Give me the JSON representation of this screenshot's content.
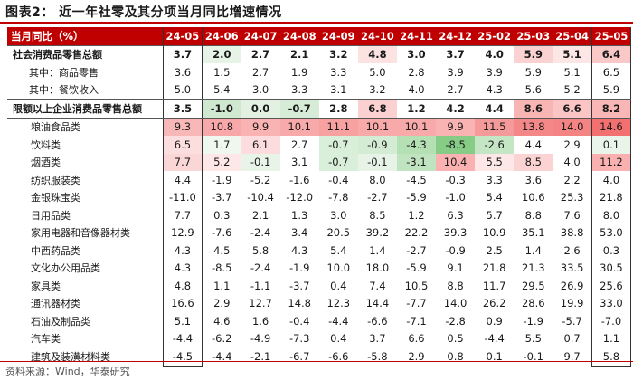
{
  "title": "图表2：  近一年社零及其分项当月同比增速情况",
  "source": "资料来源：Wind，华泰研究",
  "chart_data": {
    "type": "table",
    "header_label": "当月同比（%）",
    "columns": [
      "24-05",
      "24-06",
      "24-07",
      "24-08",
      "24-09",
      "24-10",
      "24-11",
      "24-12",
      "25-02",
      "25-03",
      "25-04",
      "25-05"
    ],
    "rows": [
      {
        "label": "社会消费品零售总额",
        "style": "bold",
        "values": [
          3.7,
          2.0,
          2.7,
          2.1,
          3.2,
          4.8,
          3.0,
          3.7,
          4.0,
          5.9,
          5.1,
          6.4
        ]
      },
      {
        "label": "其中：商品零售",
        "style": "sub",
        "values": [
          3.6,
          1.5,
          2.7,
          1.9,
          3.3,
          5.0,
          2.8,
          3.9,
          3.9,
          5.9,
          5.1,
          6.5
        ]
      },
      {
        "label": "其中：餐饮收入",
        "style": "sub",
        "values": [
          5.0,
          5.4,
          3.0,
          3.3,
          3.1,
          3.2,
          4.0,
          2.7,
          4.3,
          5.6,
          5.2,
          5.9
        ]
      },
      {
        "label": "限额以上企业消费品零售总额",
        "style": "bold",
        "values": [
          3.5,
          -1.0,
          0.0,
          -0.7,
          2.8,
          6.8,
          1.2,
          4.2,
          4.4,
          8.6,
          6.6,
          8.2
        ]
      },
      {
        "label": "粮油食品类",
        "style": "ind",
        "values": [
          9.3,
          10.8,
          9.9,
          10.1,
          11.1,
          10.1,
          10.1,
          9.9,
          11.5,
          13.8,
          14.0,
          14.6
        ]
      },
      {
        "label": "饮料类",
        "style": "ind",
        "values": [
          6.5,
          1.7,
          6.1,
          2.7,
          -0.7,
          -0.9,
          -4.3,
          -8.5,
          -2.6,
          4.4,
          2.9,
          0.1
        ]
      },
      {
        "label": "烟酒类",
        "style": "ind",
        "values": [
          7.7,
          5.2,
          -0.1,
          3.1,
          -0.7,
          -0.1,
          -3.1,
          10.4,
          5.5,
          8.5,
          4.0,
          11.2
        ]
      },
      {
        "label": "纺织服装类",
        "style": "ind",
        "values": [
          4.4,
          -1.9,
          -5.2,
          -1.6,
          -0.4,
          8.0,
          -4.5,
          -0.3,
          3.3,
          3.6,
          2.2,
          4.0
        ]
      },
      {
        "label": "金银珠宝类",
        "style": "ind",
        "values": [
          -11.0,
          -3.7,
          -10.4,
          -12.0,
          -7.8,
          -2.7,
          -5.9,
          -1.0,
          5.4,
          10.6,
          25.3,
          21.8
        ]
      },
      {
        "label": "日用品类",
        "style": "ind",
        "values": [
          7.7,
          0.3,
          2.1,
          1.3,
          3.0,
          8.5,
          1.2,
          6.3,
          5.7,
          8.8,
          7.6,
          8.0
        ]
      },
      {
        "label": "家用电器和音像器材类",
        "style": "ind",
        "values": [
          12.9,
          -7.6,
          -2.4,
          3.4,
          20.5,
          39.2,
          22.2,
          39.3,
          10.9,
          35.1,
          38.8,
          53.0
        ]
      },
      {
        "label": "中西药品类",
        "style": "ind",
        "values": [
          4.3,
          4.5,
          5.8,
          4.3,
          5.4,
          1.4,
          -2.7,
          -0.9,
          2.5,
          1.4,
          2.6,
          0.3
        ]
      },
      {
        "label": "文化办公用品类",
        "style": "ind",
        "values": [
          4.3,
          -8.5,
          -2.4,
          -1.9,
          10.0,
          18.0,
          -5.9,
          9.1,
          21.8,
          21.3,
          33.5,
          30.5
        ]
      },
      {
        "label": "家具类",
        "style": "ind",
        "values": [
          4.8,
          1.1,
          -1.1,
          -3.7,
          0.4,
          7.4,
          10.5,
          8.8,
          11.7,
          29.5,
          26.9,
          25.6
        ]
      },
      {
        "label": "通讯器材类",
        "style": "ind",
        "values": [
          16.6,
          2.9,
          12.7,
          14.8,
          12.3,
          14.4,
          -7.7,
          14.0,
          26.2,
          28.6,
          19.9,
          33.0
        ]
      },
      {
        "label": "石油及制品类",
        "style": "ind",
        "values": [
          5.1,
          4.6,
          1.6,
          -0.4,
          -4.4,
          -6.6,
          -7.1,
          -2.8,
          0.9,
          -1.9,
          -5.7,
          -7.0
        ]
      },
      {
        "label": "汽车类",
        "style": "ind",
        "values": [
          -4.4,
          -6.2,
          -4.9,
          -7.3,
          0.4,
          3.7,
          6.6,
          0.5,
          -4.4,
          5.5,
          0.7,
          1.1
        ]
      },
      {
        "label": "建筑及装潢材料类",
        "style": "ind",
        "values": [
          -4.5,
          -4.4,
          -2.1,
          -6.7,
          -6.6,
          -5.8,
          2.9,
          0.8,
          0.1,
          -0.1,
          9.7,
          5.8
        ]
      }
    ],
    "cell_colors": {
      "0": [
        "#ffffff",
        "#e6f3e6",
        "#ffffff",
        "#ffffff",
        "#ffffff",
        "#fde2e2",
        "#ffffff",
        "#ffffff",
        "#ffffff",
        "#fbd2d2",
        "#fde6e6",
        "#fbc8c8"
      ],
      "3": [
        "#ffffff",
        "#cfe8cf",
        "#e3f1e3",
        "#d6ecd6",
        "#ffffff",
        "#fbd0d0",
        "#ffffff",
        "#ffffff",
        "#ffffff",
        "#f9b4b4",
        "#fbc5c5",
        "#f9b6b6"
      ],
      "4": [
        "#f9b8b8",
        "#f8a8a8",
        "#f9b3b3",
        "#f8aaaa",
        "#f7a1a1",
        "#f8aaaa",
        "#f8aaaa",
        "#f9b3b3",
        "#f59a9a",
        "#f48787",
        "#f48484",
        "#f27070"
      ],
      "5": [
        "#fcdede",
        "#eef8ee",
        "#fcdcdc",
        "#ffffff",
        "#d9efd9",
        "#d4ecd4",
        "#b4e0b4",
        "#86cc86",
        "#c4e6c4",
        "#ffffff",
        "#ffffff",
        "#e9f5e9"
      ],
      "6": [
        "#fbd6d6",
        "#fde7e7",
        "#e8f4e8",
        "#ffffff",
        "#d9efd9",
        "#e6f3e6",
        "#bfe4bf",
        "#f9b1b1",
        "#fde7e7",
        "#fbd3d3",
        "#ffffff",
        "#f9b0b0"
      ]
    },
    "title": "近一年社零及其分项当月同比增速情况"
  }
}
